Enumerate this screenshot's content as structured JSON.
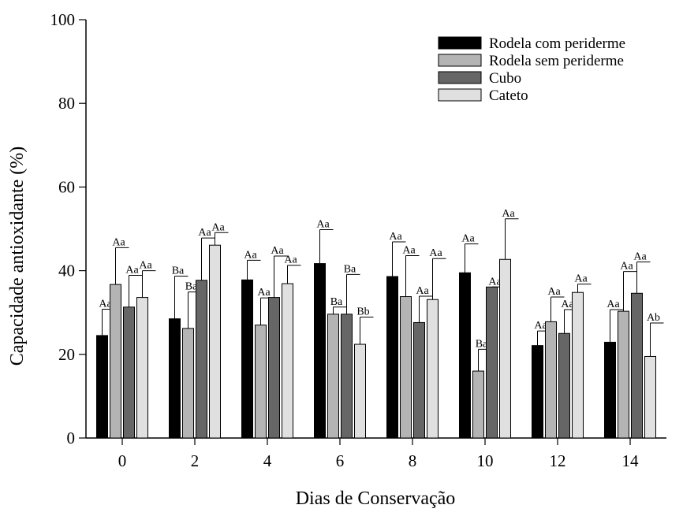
{
  "chart_data": {
    "type": "bar",
    "title": "",
    "xlabel": "Dias de Conservação",
    "ylabel": "Capacidade antioxidante (%)",
    "ylim": [
      0,
      100
    ],
    "yticks": [
      "0",
      "20",
      "40",
      "60",
      "80",
      "100"
    ],
    "categories": [
      "0",
      "2",
      "4",
      "6",
      "8",
      "10",
      "12",
      "14"
    ],
    "grid": false,
    "legend_position": "top-right",
    "series": [
      {
        "name": "Rodela com periderme",
        "color": "#000000",
        "values": [
          24.5,
          28.5,
          37.8,
          41.7,
          38.6,
          39.5,
          22.1,
          22.9
        ],
        "errors": [
          6.3,
          10.2,
          4.7,
          8.1,
          8.3,
          6.9,
          3.5,
          7.8
        ],
        "labels": [
          "Aa",
          "Ba",
          "Aa",
          "Aa",
          "Aa",
          "Aa",
          "Aa",
          "Aa"
        ]
      },
      {
        "name": "Rodela sem periderme",
        "color": "#b4b4b4",
        "values": [
          36.7,
          26.2,
          27.0,
          29.6,
          33.8,
          16.0,
          27.8,
          30.3
        ],
        "errors": [
          8.8,
          8.7,
          6.5,
          1.7,
          9.8,
          5.2,
          5.9,
          9.5
        ],
        "labels": [
          "Aa",
          "Ba",
          "Aa",
          "Ba",
          "Aa",
          "Ba",
          "Aa",
          "Aa"
        ]
      },
      {
        "name": "Cubo",
        "color": "#666666",
        "values": [
          31.3,
          37.7,
          33.6,
          29.6,
          27.6,
          36.1,
          25.0,
          34.6
        ],
        "errors": [
          7.6,
          10.1,
          9.9,
          9.5,
          6.3,
          0.0,
          5.7,
          7.5
        ],
        "labels": [
          "Aa",
          "Aa",
          "Aa",
          "Ba",
          "Aa",
          "Aa",
          "Aa",
          "Aa"
        ]
      },
      {
        "name": "Cateto",
        "color": "#e0e0e0",
        "values": [
          33.6,
          46.1,
          36.9,
          22.4,
          33.1,
          42.7,
          34.8,
          19.5
        ],
        "errors": [
          6.4,
          3.0,
          4.4,
          6.5,
          9.8,
          9.7,
          2.0,
          8.0
        ],
        "labels": [
          "Aa",
          "Aa",
          "Aa",
          "Bb",
          "Aa",
          "Aa",
          "Aa",
          "Ab"
        ]
      }
    ]
  }
}
